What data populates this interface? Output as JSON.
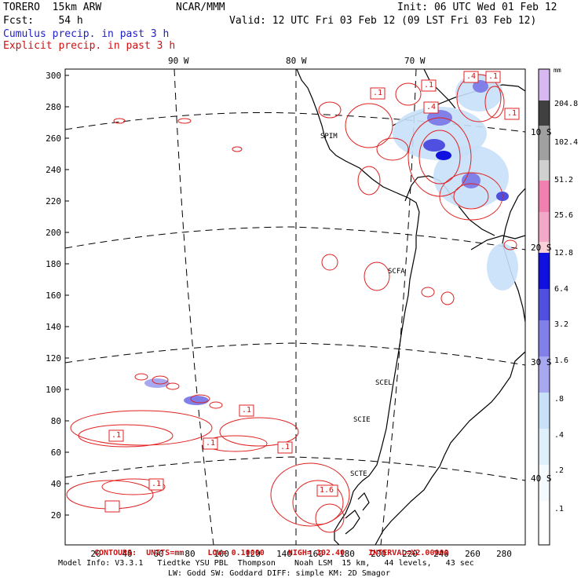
{
  "header": {
    "model_line": "TORERO  15km ARW",
    "center": "NCAR/MMM",
    "init": "Init: 06 UTC Wed 01 Feb 12",
    "fcst_line": "Fcst:    54 h",
    "valid": "Valid: 12 UTC Fri 03 Feb 12 (09 LST Fri 03 Feb 12)",
    "cumulus_label": "Cumulus precip. in past 3 h",
    "explicit_label": "Explicit precip. in past 3 h",
    "cumulus_color": "#2020c8",
    "explicit_color": "#d01010"
  },
  "map": {
    "y_ticks": [
      "300",
      "280",
      "260",
      "240",
      "220",
      "200",
      "180",
      "160",
      "140",
      "120",
      "100",
      "80",
      "60",
      "40",
      "20"
    ],
    "x_ticks": [
      "20",
      "40",
      "60",
      "80",
      "100",
      "120",
      "140",
      "160",
      "180",
      "200",
      "220",
      "240",
      "260",
      "280"
    ],
    "lon_labels": [
      "90 W",
      "80 W",
      "70 W"
    ],
    "lat_labels": [
      "10 S",
      "20 S",
      "30 S",
      "40 S"
    ],
    "stations": [
      "SPIM",
      "SCFA",
      "SCEL",
      "SCIE",
      "SCTE"
    ],
    "contour_labels": [
      ".4",
      ".1",
      ".1",
      ".1",
      ".4",
      ".1",
      ".1",
      ".1",
      ".1",
      ".1",
      ".1",
      "1.6"
    ],
    "land_color": "#000000",
    "contour_color": "#e02020"
  },
  "colorbar": {
    "units": "mm",
    "labels": [
      "204.8",
      "102.4",
      "51.2",
      "25.6",
      "12.8",
      "6.4",
      "3.2",
      "1.6",
      ".8",
      ".4",
      ".2",
      ".1"
    ],
    "colors": [
      "#d8b8f0",
      "#404040",
      "#a0a0a0",
      "#d0d0d0",
      "#f080b0",
      "#f4a8c8",
      "#f8d0d8",
      "#1010e0",
      "#5050e0",
      "#8080e8",
      "#a8a8f0",
      "#c8e0f8",
      "#e0f0fa",
      "#f4fafd",
      "#ffffff"
    ]
  },
  "footer": {
    "contours": "CONTOURS:  UNITS=mm     LOW= 0.10000     HIGH= 102.40     INTERVAL=X2.00000",
    "model_info": "Model Info: V3.3.1   Tiedtke YSU PBL  Thompson    Noah LSM  15 km,   44 levels,   43 sec",
    "model_info2": "LW: Godd SW: Goddard DIFF: simple KM: 2D Smagor"
  }
}
